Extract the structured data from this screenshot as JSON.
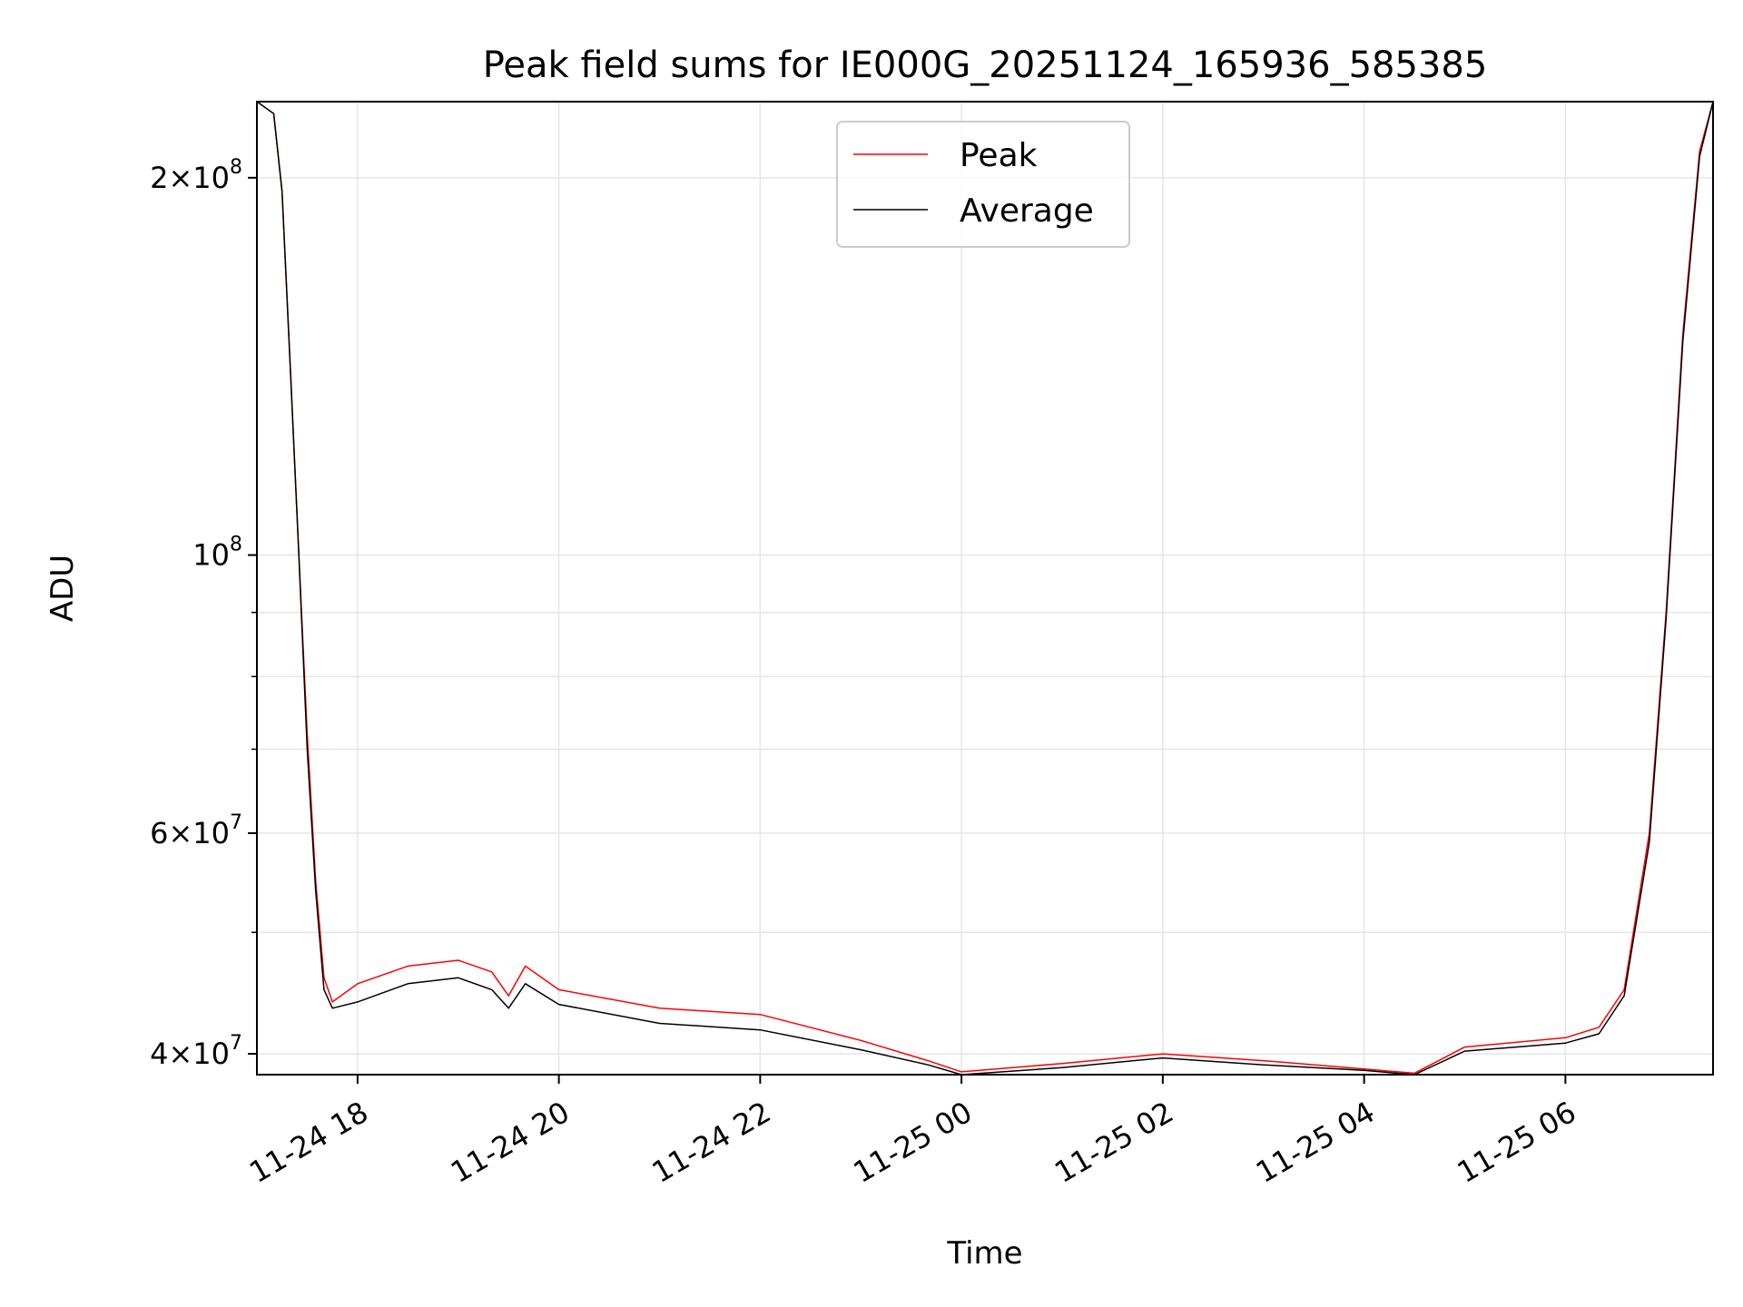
{
  "chart_data": {
    "type": "line",
    "title": "Peak field sums for IE000G_20251124_165936_585385",
    "xlabel": "Time",
    "ylabel": "ADU",
    "y_scale": "log",
    "ylim": [
      38500000,
      230000000
    ],
    "xlim": [
      "2025-11-24 17:00",
      "2025-11-25 07:28"
    ],
    "grid": true,
    "legend_position": "upper center",
    "x_ticks": [
      "2025-11-24 18:00",
      "2025-11-24 20:00",
      "2025-11-24 22:00",
      "2025-11-25 00:00",
      "2025-11-25 02:00",
      "2025-11-25 04:00",
      "2025-11-25 06:00"
    ],
    "x_tick_labels": [
      "11-24 18",
      "11-24 20",
      "11-24 22",
      "11-25 00",
      "11-25 02",
      "11-25 04",
      "11-25 06"
    ],
    "y_ticks": [
      {
        "value": 40000000,
        "mantissa": "4",
        "exponent": "7"
      },
      {
        "value": 60000000,
        "mantissa": "6",
        "exponent": "7"
      },
      {
        "value": 100000000,
        "mantissa": "",
        "exponent": "8"
      },
      {
        "value": 200000000,
        "mantissa": "2",
        "exponent": "8"
      }
    ],
    "y_minor_ticks": [
      50000000,
      70000000,
      80000000,
      90000000
    ],
    "series": [
      {
        "name": "Peak",
        "color": "#ff0000",
        "x": [
          "2025-11-24 17:00",
          "2025-11-24 17:10",
          "2025-11-24 17:15",
          "2025-11-24 17:20",
          "2025-11-24 17:25",
          "2025-11-24 17:30",
          "2025-11-24 17:35",
          "2025-11-24 17:40",
          "2025-11-24 17:45",
          "2025-11-24 18:00",
          "2025-11-24 18:30",
          "2025-11-24 19:00",
          "2025-11-24 19:20",
          "2025-11-24 19:30",
          "2025-11-24 19:40",
          "2025-11-24 20:00",
          "2025-11-24 21:00",
          "2025-11-24 22:00",
          "2025-11-24 23:00",
          "2025-11-24 23:40",
          "2025-11-25 00:00",
          "2025-11-25 01:00",
          "2025-11-25 02:00",
          "2025-11-25 03:00",
          "2025-11-25 04:00",
          "2025-11-25 04:30",
          "2025-11-25 05:00",
          "2025-11-25 06:00",
          "2025-11-25 06:20",
          "2025-11-25 06:35",
          "2025-11-25 06:50",
          "2025-11-25 07:00",
          "2025-11-25 07:10",
          "2025-11-25 07:20",
          "2025-11-25 07:28"
        ],
        "y": [
          230000000,
          225000000,
          195000000,
          140000000,
          100000000,
          72000000,
          55000000,
          46000000,
          44000000,
          45500000,
          47000000,
          47500000,
          46500000,
          44500000,
          47000000,
          45000000,
          43500000,
          43000000,
          41000000,
          39500000,
          38700000,
          39300000,
          40000000,
          39500000,
          38900000,
          38600000,
          40500000,
          41200000,
          42000000,
          45000000,
          60000000,
          90000000,
          150000000,
          210000000,
          230000000
        ]
      },
      {
        "name": "Average",
        "color": "#000000",
        "x": [
          "2025-11-24 17:00",
          "2025-11-24 17:10",
          "2025-11-24 17:15",
          "2025-11-24 17:20",
          "2025-11-24 17:25",
          "2025-11-24 17:30",
          "2025-11-24 17:35",
          "2025-11-24 17:40",
          "2025-11-24 17:45",
          "2025-11-24 18:00",
          "2025-11-24 18:30",
          "2025-11-24 19:00",
          "2025-11-24 19:20",
          "2025-11-24 19:30",
          "2025-11-24 19:40",
          "2025-11-24 20:00",
          "2025-11-24 21:00",
          "2025-11-24 22:00",
          "2025-11-24 23:00",
          "2025-11-24 23:40",
          "2025-11-25 00:00",
          "2025-11-25 01:00",
          "2025-11-25 02:00",
          "2025-11-25 03:00",
          "2025-11-25 04:00",
          "2025-11-25 04:30",
          "2025-11-25 05:00",
          "2025-11-25 06:00",
          "2025-11-25 06:20",
          "2025-11-25 06:35",
          "2025-11-25 06:50",
          "2025-11-25 07:00",
          "2025-11-25 07:10",
          "2025-11-25 07:20",
          "2025-11-25 07:28"
        ],
        "y": [
          230000000,
          225000000,
          195000000,
          140000000,
          100000000,
          70000000,
          54000000,
          45000000,
          43500000,
          44000000,
          45500000,
          46000000,
          45000000,
          43500000,
          45500000,
          43800000,
          42300000,
          41800000,
          40300000,
          39200000,
          38500000,
          39000000,
          39700000,
          39200000,
          38800000,
          38500000,
          40200000,
          40800000,
          41500000,
          44500000,
          59000000,
          89000000,
          148000000,
          208000000,
          230000000
        ]
      }
    ]
  }
}
